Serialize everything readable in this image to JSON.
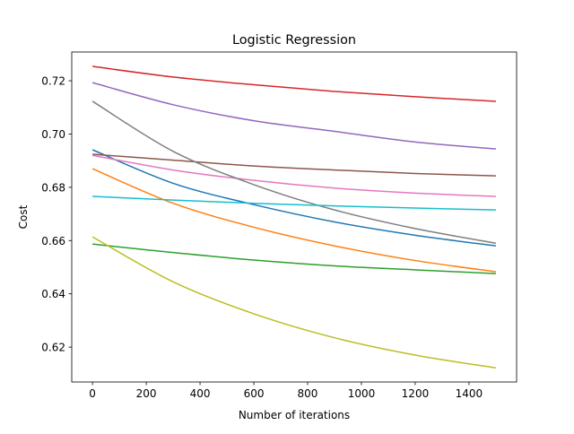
{
  "chart_data": {
    "type": "line",
    "title": "Logistic Regression",
    "xlabel": "Number of iterations",
    "ylabel": "Cost",
    "xlim": [
      -77,
      1577
    ],
    "ylim": [
      0.6069,
      0.7308
    ],
    "xticks": [
      0,
      200,
      400,
      600,
      800,
      1000,
      1200,
      1400
    ],
    "xtick_labels": [
      "0",
      "200",
      "400",
      "600",
      "800",
      "1000",
      "1200",
      "1400"
    ],
    "yticks": [
      0.62,
      0.64,
      0.66,
      0.68,
      0.7,
      0.72
    ],
    "ytick_labels": [
      "0.62",
      "0.64",
      "0.66",
      "0.68",
      "0.70",
      "0.72"
    ],
    "grid": false,
    "x": [
      0,
      300,
      600,
      900,
      1200,
      1500
    ],
    "series": [
      {
        "color": "#1f77b4",
        "values": [
          0.6941,
          0.6815,
          0.6735,
          0.667,
          0.662,
          0.658
        ]
      },
      {
        "color": "#ff7f0e",
        "values": [
          0.687,
          0.674,
          0.665,
          0.658,
          0.6525,
          0.6483
        ]
      },
      {
        "color": "#2ca02c",
        "values": [
          0.6587,
          0.6555,
          0.6527,
          0.6505,
          0.649,
          0.6476
        ]
      },
      {
        "color": "#d62728",
        "values": [
          0.7254,
          0.7214,
          0.7185,
          0.716,
          0.714,
          0.7123
        ]
      },
      {
        "color": "#9467bd",
        "values": [
          0.7193,
          0.711,
          0.705,
          0.701,
          0.697,
          0.6944
        ]
      },
      {
        "color": "#8c564b",
        "values": [
          0.6924,
          0.6902,
          0.688,
          0.6865,
          0.6852,
          0.6843
        ]
      },
      {
        "color": "#e377c2",
        "values": [
          0.692,
          0.6865,
          0.6826,
          0.6797,
          0.6778,
          0.6766
        ]
      },
      {
        "color": "#7f7f7f",
        "values": [
          0.7123,
          0.6935,
          0.681,
          0.6715,
          0.6645,
          0.659
        ]
      },
      {
        "color": "#bcbd22",
        "values": [
          0.6614,
          0.6445,
          0.6325,
          0.6235,
          0.617,
          0.6122
        ]
      },
      {
        "color": "#17becf",
        "values": [
          0.6766,
          0.6752,
          0.674,
          0.673,
          0.6722,
          0.6715
        ]
      }
    ]
  }
}
